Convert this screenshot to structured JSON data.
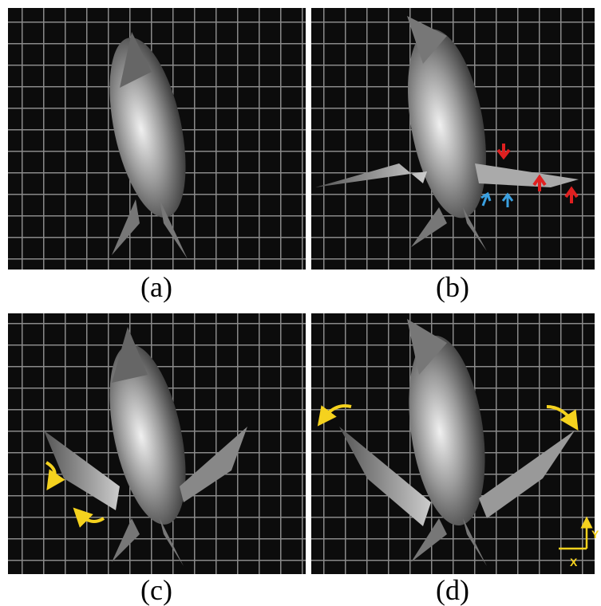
{
  "panels": [
    {
      "label": "(a)"
    },
    {
      "label": "(b)"
    },
    {
      "label": "(c)"
    },
    {
      "label": "(d)"
    }
  ],
  "axes": {
    "x": "X",
    "y": "Y"
  }
}
